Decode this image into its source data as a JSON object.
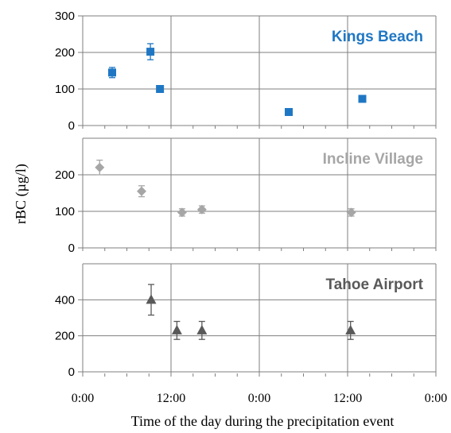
{
  "chart_data": {
    "type": "scatter",
    "ylabel": "rBC (µg/l)",
    "xlabel": "Time of the day during the precipitation event",
    "x_ticks": [
      "0:00",
      "12:00",
      "0:00",
      "12:00",
      "0:00"
    ],
    "x_range_hours": [
      0,
      48
    ],
    "grid": true,
    "panels": [
      {
        "title": "Kings Beach",
        "color": "#1f77c4",
        "marker": "square",
        "ylim": [
          0,
          300
        ],
        "yticks": [
          0,
          100,
          200,
          300
        ],
        "points": [
          {
            "x": 4,
            "y": 145,
            "err": 14
          },
          {
            "x": 9.2,
            "y": 202,
            "err": 22
          },
          {
            "x": 10.5,
            "y": 100,
            "err": 6
          },
          {
            "x": 28,
            "y": 37,
            "err": 4
          },
          {
            "x": 38,
            "y": 73,
            "err": 5
          }
        ]
      },
      {
        "title": "Incline Village",
        "color": "#a6a6a6",
        "marker": "diamond",
        "ylim": [
          0,
          300
        ],
        "yticks": [
          0,
          100,
          200
        ],
        "points": [
          {
            "x": 2.3,
            "y": 220,
            "err": 20
          },
          {
            "x": 8,
            "y": 155,
            "err": 15
          },
          {
            "x": 13.5,
            "y": 97,
            "err": 10
          },
          {
            "x": 16.2,
            "y": 105,
            "err": 10
          },
          {
            "x": 36.5,
            "y": 97,
            "err": 10
          }
        ]
      },
      {
        "title": "Tahoe Airport",
        "color": "#595959",
        "marker": "triangle",
        "ylim": [
          0,
          600
        ],
        "yticks": [
          0,
          200,
          400
        ],
        "points": [
          {
            "x": 9.3,
            "y": 400,
            "err": 85
          },
          {
            "x": 12.8,
            "y": 230,
            "err": 50
          },
          {
            "x": 16.2,
            "y": 230,
            "err": 50
          },
          {
            "x": 36.4,
            "y": 230,
            "err": 50
          }
        ]
      }
    ]
  }
}
